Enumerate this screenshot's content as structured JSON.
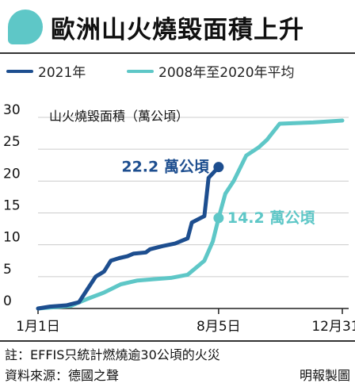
{
  "title": "歐洲山火燒毀面積上升",
  "legend": {
    "items": [
      {
        "label": "2021年",
        "color": "#1d4e8f"
      },
      {
        "label": "2008年至2020年平均",
        "color": "#5ec7c7"
      }
    ]
  },
  "colors": {
    "accent": "#5ec7c7",
    "series_2021": "#1d4e8f",
    "series_avg": "#5ec7c7"
  },
  "chart_data": {
    "type": "line",
    "title": "歐洲山火燒毀面積上升",
    "ylabel": "山火燒毀面積（萬公頃）",
    "xlabel": "",
    "x_unit": "day_of_year",
    "ylim": [
      0,
      30
    ],
    "xlim": [
      1,
      365
    ],
    "y_ticks": [
      0,
      5,
      10,
      15,
      20,
      25,
      30
    ],
    "x_ticks": [
      {
        "value": 1,
        "label": "1月1日"
      },
      {
        "value": 217,
        "label": "8月5日"
      },
      {
        "value": 365,
        "label": "12月31日"
      }
    ],
    "grid": true,
    "legend_position": "top",
    "series": [
      {
        "name": "2021年",
        "color": "#1d4e8f",
        "points": [
          [
            1,
            0
          ],
          [
            15,
            0.3
          ],
          [
            35,
            0.5
          ],
          [
            50,
            1.0
          ],
          [
            60,
            3
          ],
          [
            70,
            5
          ],
          [
            80,
            5.8
          ],
          [
            88,
            7.5
          ],
          [
            98,
            7.9
          ],
          [
            108,
            8.2
          ],
          [
            115,
            8.6
          ],
          [
            130,
            8.8
          ],
          [
            135,
            9.3
          ],
          [
            150,
            9.8
          ],
          [
            165,
            10.2
          ],
          [
            180,
            11
          ],
          [
            185,
            13.5
          ],
          [
            200,
            14.5
          ],
          [
            205,
            20.5
          ],
          [
            217,
            22.2
          ]
        ],
        "end_label": "22.2 萬公頃"
      },
      {
        "name": "2008年至2020年平均",
        "color": "#5ec7c7",
        "points": [
          [
            1,
            0
          ],
          [
            40,
            0.4
          ],
          [
            60,
            1.5
          ],
          [
            80,
            2.5
          ],
          [
            100,
            3.8
          ],
          [
            120,
            4.4
          ],
          [
            140,
            4.6
          ],
          [
            160,
            4.8
          ],
          [
            180,
            5.3
          ],
          [
            200,
            7.5
          ],
          [
            210,
            10.5
          ],
          [
            217,
            14.2
          ],
          [
            225,
            18
          ],
          [
            235,
            20
          ],
          [
            250,
            24
          ],
          [
            265,
            25.3
          ],
          [
            275,
            26.5
          ],
          [
            290,
            29
          ],
          [
            330,
            29.2
          ],
          [
            365,
            29.5
          ]
        ],
        "end_label": "14.2 萬公頃"
      }
    ]
  },
  "footer": {
    "note": "註：EFFIS只統計燃燒逾30公頃的火災",
    "source": "資料來源：德國之聲",
    "credit": "明報製圖"
  }
}
